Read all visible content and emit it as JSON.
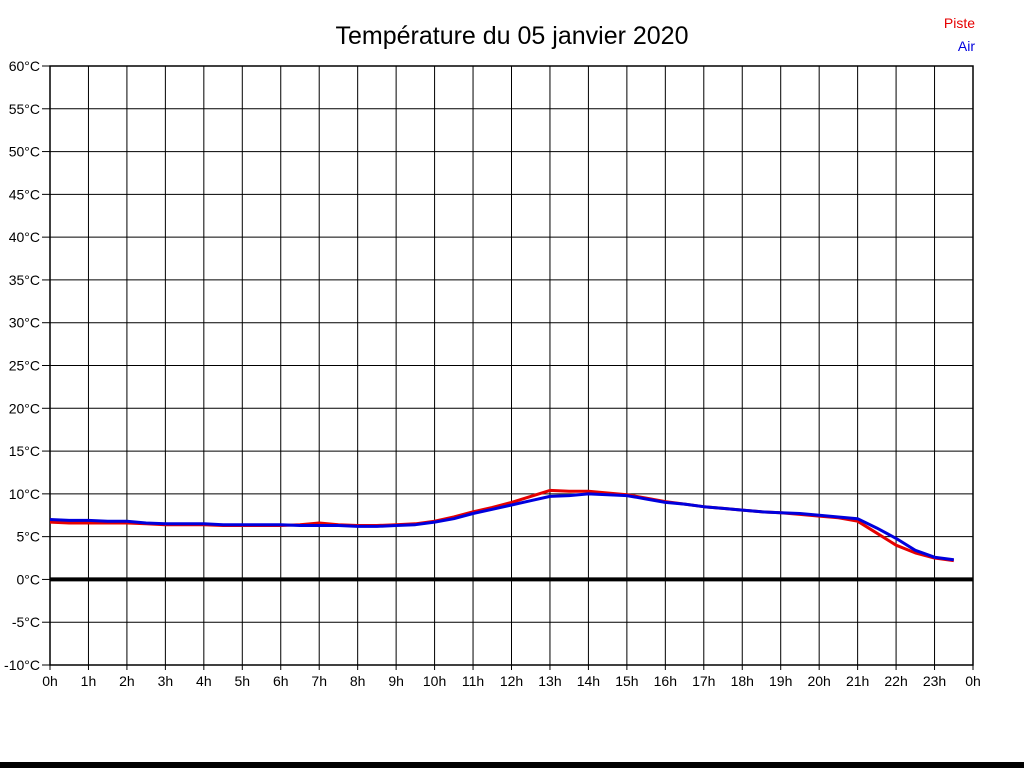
{
  "page": {
    "background": "#ffffff",
    "footer_bar_color": "#000000"
  },
  "chart_data": {
    "type": "line",
    "title": "Température du 05 janvier 2020",
    "xlabel": "",
    "ylabel": "",
    "xlim": [
      0,
      24
    ],
    "ylim": [
      -10,
      60
    ],
    "grid": true,
    "zero_line_value": 0,
    "y_tick_values": [
      60,
      55,
      50,
      45,
      40,
      35,
      30,
      25,
      20,
      15,
      10,
      5,
      0,
      -5,
      -10
    ],
    "y_tick_labels": [
      "60°C",
      "55°C",
      "50°C",
      "45°C",
      "40°C",
      "35°C",
      "30°C",
      "25°C",
      "20°C",
      "15°C",
      "10°C",
      "5°C",
      "0°C",
      "-5°C",
      "-10°C"
    ],
    "x_tick_values": [
      0,
      1,
      2,
      3,
      4,
      5,
      6,
      7,
      8,
      9,
      10,
      11,
      12,
      13,
      14,
      15,
      16,
      17,
      18,
      19,
      20,
      21,
      22,
      23,
      24
    ],
    "x_tick_labels": [
      "0h",
      "1h",
      "2h",
      "3h",
      "4h",
      "5h",
      "6h",
      "7h",
      "8h",
      "9h",
      "10h",
      "11h",
      "12h",
      "13h",
      "14h",
      "15h",
      "16h",
      "17h",
      "18h",
      "19h",
      "20h",
      "21h",
      "22h",
      "23h",
      "0h"
    ],
    "legend": [
      {
        "label": "Piste",
        "color": "#e60000"
      },
      {
        "label": "Air",
        "color": "#0000dd"
      }
    ],
    "x_hours": [
      0,
      0.5,
      1,
      1.5,
      2,
      2.5,
      3,
      3.5,
      4,
      4.5,
      5,
      5.5,
      6,
      6.5,
      7,
      7.5,
      8,
      8.5,
      9,
      9.5,
      10,
      10.5,
      11,
      11.5,
      12,
      12.5,
      13,
      13.5,
      14,
      14.5,
      15,
      15.5,
      16,
      16.5,
      17,
      17.5,
      18,
      18.5,
      19,
      19.5,
      20,
      20.5,
      21,
      21.5,
      22,
      22.5,
      23,
      23.5
    ],
    "series": [
      {
        "name": "Piste",
        "color": "#e60000",
        "values": [
          6.7,
          6.6,
          6.6,
          6.6,
          6.6,
          6.5,
          6.4,
          6.4,
          6.4,
          6.3,
          6.3,
          6.3,
          6.3,
          6.4,
          6.6,
          6.4,
          6.3,
          6.3,
          6.4,
          6.5,
          6.8,
          7.3,
          7.9,
          8.4,
          9.0,
          9.7,
          10.4,
          10.3,
          10.3,
          10.1,
          9.9,
          9.5,
          9.1,
          8.8,
          8.5,
          8.3,
          8.1,
          7.9,
          7.8,
          7.6,
          7.4,
          7.2,
          6.8,
          5.4,
          4.0,
          3.1,
          2.5,
          2.2
        ]
      },
      {
        "name": "Air",
        "color": "#0000dd",
        "values": [
          7.0,
          6.9,
          6.9,
          6.8,
          6.8,
          6.6,
          6.5,
          6.5,
          6.5,
          6.4,
          6.4,
          6.4,
          6.4,
          6.3,
          6.3,
          6.3,
          6.2,
          6.2,
          6.3,
          6.4,
          6.7,
          7.1,
          7.7,
          8.2,
          8.7,
          9.2,
          9.7,
          9.8,
          10.0,
          9.9,
          9.8,
          9.4,
          9.0,
          8.8,
          8.5,
          8.3,
          8.1,
          7.9,
          7.8,
          7.7,
          7.5,
          7.3,
          7.1,
          6.0,
          4.8,
          3.4,
          2.6,
          2.3
        ]
      }
    ]
  }
}
